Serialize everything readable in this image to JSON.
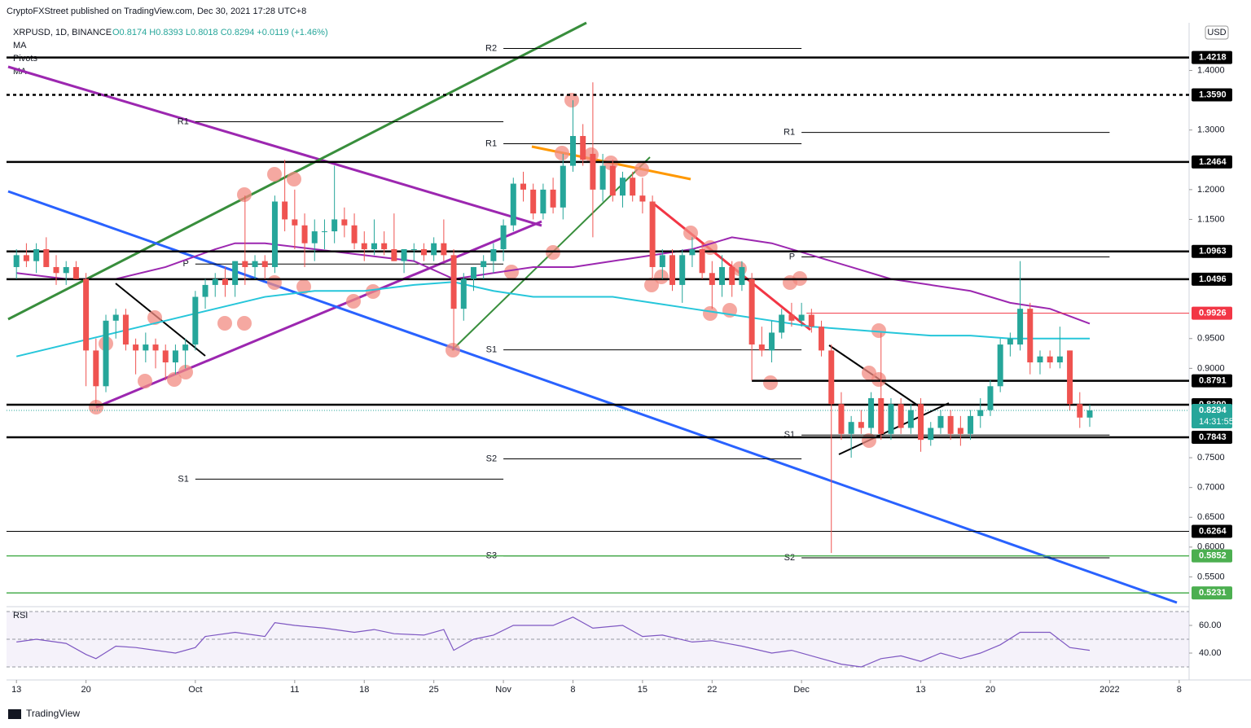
{
  "header": {
    "published": "CryptoFXStreet published on TradingView.com, Dec 30, 2021 17:28 UTC+8",
    "symbol": "XRPUSD, 1D, BINANCE",
    "ohlc": "O0.8174 H0.8393 L0.8018 C0.8294 +0.0119 (+1.46%)",
    "indicators": [
      "MA",
      "Pivots",
      "MA"
    ],
    "currency": "USD",
    "brand": "TradingView"
  },
  "chart_data": {
    "type": "candlestick",
    "up_color": "#26a69a",
    "down_color": "#ef5350",
    "xlim": [
      -1,
      118
    ],
    "xticks": [
      {
        "value": 0,
        "label": "13"
      },
      {
        "value": 7,
        "label": "20"
      },
      {
        "value": 18,
        "label": "Oct"
      },
      {
        "value": 28,
        "label": "11"
      },
      {
        "value": 35,
        "label": "18"
      },
      {
        "value": 42,
        "label": "25"
      },
      {
        "value": 49,
        "label": "Nov"
      },
      {
        "value": 56,
        "label": "8"
      },
      {
        "value": 63,
        "label": "15"
      },
      {
        "value": 70,
        "label": "22"
      },
      {
        "value": 79,
        "label": "Dec"
      },
      {
        "value": 91,
        "label": "13"
      },
      {
        "value": 98,
        "label": "20"
      },
      {
        "value": 110,
        "label": "2022"
      },
      {
        "value": 117,
        "label": "8"
      }
    ],
    "ylim": [
      0.5,
      1.48
    ],
    "yticks": [
      {
        "value": 1.4,
        "label": "1.4000"
      },
      {
        "value": 1.3,
        "label": "1.3000"
      },
      {
        "value": 1.2,
        "label": "1.2000"
      },
      {
        "value": 1.15,
        "label": "1.1500"
      },
      {
        "value": 0.95,
        "label": "0.9500"
      },
      {
        "value": 0.9,
        "label": "0.9000"
      },
      {
        "value": 0.75,
        "label": "0.7500"
      },
      {
        "value": 0.7,
        "label": "0.7000"
      },
      {
        "value": 0.65,
        "label": "0.6500"
      },
      {
        "value": 0.6,
        "label": "0.6000"
      },
      {
        "value": 0.55,
        "label": "0.5500"
      }
    ],
    "candles": [
      [
        1.07,
        1.1,
        1.05,
        1.09
      ],
      [
        1.09,
        1.11,
        1.07,
        1.08
      ],
      [
        1.08,
        1.11,
        1.06,
        1.1
      ],
      [
        1.1,
        1.12,
        1.07,
        1.07
      ],
      [
        1.07,
        1.09,
        1.04,
        1.06
      ],
      [
        1.06,
        1.08,
        1.04,
        1.07
      ],
      [
        1.07,
        1.08,
        1.05,
        1.05
      ],
      [
        1.05,
        1.06,
        0.87,
        0.93
      ],
      [
        0.93,
        0.95,
        0.84,
        0.87
      ],
      [
        0.87,
        0.99,
        0.86,
        0.98
      ],
      [
        0.98,
        1.0,
        0.95,
        0.99
      ],
      [
        0.99,
        1.0,
        0.93,
        0.94
      ],
      [
        0.94,
        0.95,
        0.89,
        0.93
      ],
      [
        0.93,
        0.96,
        0.91,
        0.94
      ],
      [
        0.94,
        0.95,
        0.9,
        0.93
      ],
      [
        0.93,
        0.94,
        0.88,
        0.91
      ],
      [
        0.91,
        0.94,
        0.89,
        0.93
      ],
      [
        0.93,
        0.95,
        0.9,
        0.94
      ],
      [
        0.94,
        1.03,
        0.93,
        1.02
      ],
      [
        1.02,
        1.05,
        1.0,
        1.04
      ],
      [
        1.04,
        1.06,
        1.02,
        1.05
      ],
      [
        1.05,
        1.07,
        1.02,
        1.04
      ],
      [
        1.04,
        1.08,
        1.02,
        1.08
      ],
      [
        1.08,
        1.19,
        1.04,
        1.07
      ],
      [
        1.07,
        1.09,
        1.05,
        1.08
      ],
      [
        1.08,
        1.09,
        1.05,
        1.07
      ],
      [
        1.07,
        1.19,
        1.06,
        1.18
      ],
      [
        1.18,
        1.25,
        1.13,
        1.15
      ],
      [
        1.15,
        1.2,
        1.1,
        1.14
      ],
      [
        1.14,
        1.16,
        1.07,
        1.11
      ],
      [
        1.11,
        1.15,
        1.08,
        1.13
      ],
      [
        1.13,
        1.15,
        1.1,
        1.13
      ],
      [
        1.13,
        1.24,
        1.11,
        1.15
      ],
      [
        1.15,
        1.17,
        1.12,
        1.14
      ],
      [
        1.14,
        1.16,
        1.1,
        1.11
      ],
      [
        1.11,
        1.13,
        1.08,
        1.1
      ],
      [
        1.1,
        1.15,
        1.09,
        1.11
      ],
      [
        1.11,
        1.13,
        1.09,
        1.1
      ],
      [
        1.1,
        1.16,
        1.08,
        1.08
      ],
      [
        1.08,
        1.1,
        1.06,
        1.1
      ],
      [
        1.1,
        1.11,
        1.08,
        1.1
      ],
      [
        1.1,
        1.11,
        1.08,
        1.09
      ],
      [
        1.09,
        1.12,
        1.08,
        1.11
      ],
      [
        1.11,
        1.15,
        1.08,
        1.09
      ],
      [
        1.09,
        1.1,
        0.93,
        1.0
      ],
      [
        1.0,
        1.06,
        0.98,
        1.05
      ],
      [
        1.05,
        1.07,
        1.03,
        1.07
      ],
      [
        1.07,
        1.09,
        1.05,
        1.08
      ],
      [
        1.08,
        1.11,
        1.06,
        1.1
      ],
      [
        1.1,
        1.15,
        1.08,
        1.14
      ],
      [
        1.14,
        1.22,
        1.13,
        1.21
      ],
      [
        1.21,
        1.23,
        1.18,
        1.2
      ],
      [
        1.2,
        1.21,
        1.15,
        1.16
      ],
      [
        1.16,
        1.21,
        1.15,
        1.2
      ],
      [
        1.2,
        1.22,
        1.16,
        1.17
      ],
      [
        1.17,
        1.26,
        1.15,
        1.24
      ],
      [
        1.24,
        1.35,
        1.23,
        1.29
      ],
      [
        1.29,
        1.31,
        1.24,
        1.25
      ],
      [
        1.26,
        1.38,
        1.12,
        1.2
      ],
      [
        1.2,
        1.26,
        1.18,
        1.24
      ],
      [
        1.24,
        1.25,
        1.18,
        1.19
      ],
      [
        1.19,
        1.23,
        1.17,
        1.22
      ],
      [
        1.22,
        1.23,
        1.18,
        1.19
      ],
      [
        1.19,
        1.22,
        1.16,
        1.18
      ],
      [
        1.18,
        1.19,
        1.05,
        1.07
      ],
      [
        1.07,
        1.1,
        1.05,
        1.09
      ],
      [
        1.09,
        1.1,
        1.03,
        1.04
      ],
      [
        1.04,
        1.1,
        1.01,
        1.09
      ],
      [
        1.09,
        1.12,
        1.07,
        1.1
      ],
      [
        1.1,
        1.11,
        1.05,
        1.06
      ],
      [
        1.06,
        1.08,
        1.0,
        1.04
      ],
      [
        1.04,
        1.09,
        1.02,
        1.07
      ],
      [
        1.07,
        1.08,
        1.02,
        1.04
      ],
      [
        1.04,
        1.08,
        1.03,
        1.07
      ],
      [
        1.05,
        1.06,
        0.88,
        0.94
      ],
      [
        0.94,
        0.97,
        0.92,
        0.93
      ],
      [
        0.93,
        0.98,
        0.91,
        0.96
      ],
      [
        0.96,
        1.0,
        0.95,
        0.99
      ],
      [
        0.99,
        1.01,
        0.97,
        0.98
      ],
      [
        0.98,
        1.01,
        0.97,
        0.99
      ],
      [
        0.99,
        1.0,
        0.96,
        0.97
      ],
      [
        0.97,
        0.98,
        0.92,
        0.93
      ],
      [
        0.93,
        0.94,
        0.59,
        0.84
      ],
      [
        0.84,
        0.86,
        0.78,
        0.79
      ],
      [
        0.79,
        0.82,
        0.75,
        0.81
      ],
      [
        0.81,
        0.83,
        0.79,
        0.8
      ],
      [
        0.8,
        0.86,
        0.79,
        0.85
      ],
      [
        0.85,
        0.96,
        0.78,
        0.79
      ],
      [
        0.79,
        0.85,
        0.78,
        0.84
      ],
      [
        0.84,
        0.85,
        0.79,
        0.8
      ],
      [
        0.8,
        0.84,
        0.79,
        0.83
      ],
      [
        0.84,
        0.85,
        0.76,
        0.78
      ],
      [
        0.78,
        0.81,
        0.77,
        0.8
      ],
      [
        0.8,
        0.83,
        0.79,
        0.82
      ],
      [
        0.82,
        0.83,
        0.78,
        0.79
      ],
      [
        0.8,
        0.82,
        0.77,
        0.79
      ],
      [
        0.79,
        0.83,
        0.78,
        0.82
      ],
      [
        0.82,
        0.85,
        0.8,
        0.83
      ],
      [
        0.83,
        0.88,
        0.82,
        0.87
      ],
      [
        0.87,
        0.95,
        0.86,
        0.94
      ],
      [
        0.94,
        0.96,
        0.92,
        0.95
      ],
      [
        0.94,
        1.08,
        0.93,
        1.0
      ],
      [
        1.0,
        1.01,
        0.89,
        0.91
      ],
      [
        0.91,
        0.93,
        0.89,
        0.92
      ],
      [
        0.92,
        0.93,
        0.9,
        0.91
      ],
      [
        0.91,
        0.97,
        0.9,
        0.92
      ],
      [
        0.93,
        0.93,
        0.83,
        0.84
      ],
      [
        0.84,
        0.86,
        0.8,
        0.8174
      ],
      [
        0.8174,
        0.8393,
        0.8018,
        0.8294
      ]
    ],
    "moving_averages": [
      {
        "color": "#9c27b0",
        "x": [
          0,
          5,
          10,
          15,
          20,
          22,
          25,
          30,
          35,
          40,
          44,
          48,
          52,
          56,
          60,
          64,
          68,
          72,
          76,
          80,
          84,
          88,
          92,
          96,
          100,
          104,
          108
        ],
        "values": [
          1.06,
          1.05,
          1.05,
          1.07,
          1.1,
          1.11,
          1.11,
          1.1,
          1.09,
          1.08,
          1.05,
          1.06,
          1.07,
          1.07,
          1.08,
          1.09,
          1.1,
          1.12,
          1.11,
          1.09,
          1.07,
          1.05,
          1.04,
          1.03,
          1.01,
          1.0,
          0.975
        ]
      },
      {
        "color": "#26c6da",
        "x": [
          0,
          5,
          10,
          15,
          20,
          25,
          30,
          35,
          40,
          44,
          48,
          52,
          56,
          60,
          64,
          68,
          72,
          76,
          80,
          84,
          88,
          92,
          96,
          100,
          104,
          108
        ],
        "values": [
          0.92,
          0.94,
          0.96,
          0.98,
          1.0,
          1.02,
          1.03,
          1.03,
          1.04,
          1.045,
          1.03,
          1.02,
          1.02,
          1.02,
          1.01,
          1.0,
          0.99,
          0.98,
          0.97,
          0.965,
          0.96,
          0.955,
          0.955,
          0.95,
          0.95,
          0.95
        ]
      }
    ],
    "levels": [
      {
        "value": 1.4218,
        "label": "1.4218",
        "color": "#000000"
      },
      {
        "value": 1.359,
        "label": "1.3590",
        "color": "#000000",
        "dashed": true
      },
      {
        "value": 1.2464,
        "label": "1.2464",
        "color": "#000000"
      },
      {
        "value": 1.0963,
        "label": "1.0963",
        "color": "#000000"
      },
      {
        "value": 1.0496,
        "label": "1.0496",
        "color": "#000000"
      },
      {
        "value": 0.9926,
        "label": "0.9926",
        "color": "#f23645",
        "from": 79.5
      },
      {
        "value": 0.8791,
        "label": "0.8791",
        "color": "#000000",
        "from": 74
      },
      {
        "value": 0.839,
        "label": "0.8390",
        "color": "#000000"
      },
      {
        "value": 0.8294,
        "label": "0.8294",
        "sublabel": "14:31:55",
        "color": "#26a69a",
        "dashed": true
      },
      {
        "value": 0.7843,
        "label": "0.7843",
        "color": "#000000"
      },
      {
        "value": 0.6264,
        "label": "0.6264",
        "color": "#000000"
      },
      {
        "value": 0.5852,
        "label": "0.5852",
        "color": "#4caf50"
      },
      {
        "value": 0.5231,
        "label": "0.5231",
        "color": "#4caf50"
      }
    ],
    "pivots": [
      {
        "label": "R1",
        "value": 1.314,
        "from": 18,
        "to": 49
      },
      {
        "label": "P",
        "value": 1.075,
        "from": 18,
        "to": 49
      },
      {
        "label": "S1",
        "value": 0.714,
        "from": 18,
        "to": 49
      },
      {
        "label": "R2",
        "value": 1.437,
        "from": 49,
        "to": 79
      },
      {
        "label": "R1",
        "value": 1.277,
        "from": 49,
        "to": 79
      },
      {
        "label": "S1",
        "value": 0.931,
        "from": 49,
        "to": 79
      },
      {
        "label": "S2",
        "value": 0.748,
        "from": 49,
        "to": 79
      },
      {
        "label": "S3",
        "value": 0.585,
        "from": 49,
        "to": 79
      },
      {
        "label": "R1",
        "value": 1.296,
        "from": 79,
        "to": 110
      },
      {
        "label": "P",
        "value": 1.087,
        "from": 79,
        "to": 110
      },
      {
        "label": "S1",
        "value": 0.788,
        "from": 79,
        "to": 110
      },
      {
        "label": "S2",
        "value": 0.582,
        "from": 79,
        "to": 110
      }
    ],
    "rsi": {
      "name": "RSI",
      "color": "#7e57c2",
      "ylim": [
        28,
        72
      ],
      "yticks": [
        {
          "value": 60,
          "label": "60.00"
        },
        {
          "value": 40,
          "label": "40.00"
        }
      ],
      "bands": [
        70,
        50,
        30
      ],
      "x": [
        0,
        2,
        5,
        7,
        8,
        10,
        12,
        14,
        16,
        18,
        19,
        22,
        25,
        26,
        28,
        31,
        34,
        36,
        38,
        41,
        43,
        44,
        46,
        48,
        50,
        54,
        56,
        58,
        61,
        63,
        65,
        68,
        70,
        73,
        76,
        78,
        81,
        83,
        85,
        87,
        89,
        91,
        93,
        95,
        97,
        99,
        101,
        104,
        106,
        108
      ],
      "values": [
        48,
        50,
        47,
        39,
        36,
        45,
        44,
        42,
        40,
        44,
        52,
        55,
        52,
        62,
        60,
        58,
        55,
        57,
        54,
        53,
        57,
        42,
        50,
        53,
        60,
        60,
        66,
        58,
        60,
        52,
        53,
        48,
        49,
        45,
        40,
        42,
        36,
        32,
        30,
        36,
        38,
        34,
        40,
        36,
        40,
        46,
        55,
        55,
        44,
        42
      ]
    }
  }
}
